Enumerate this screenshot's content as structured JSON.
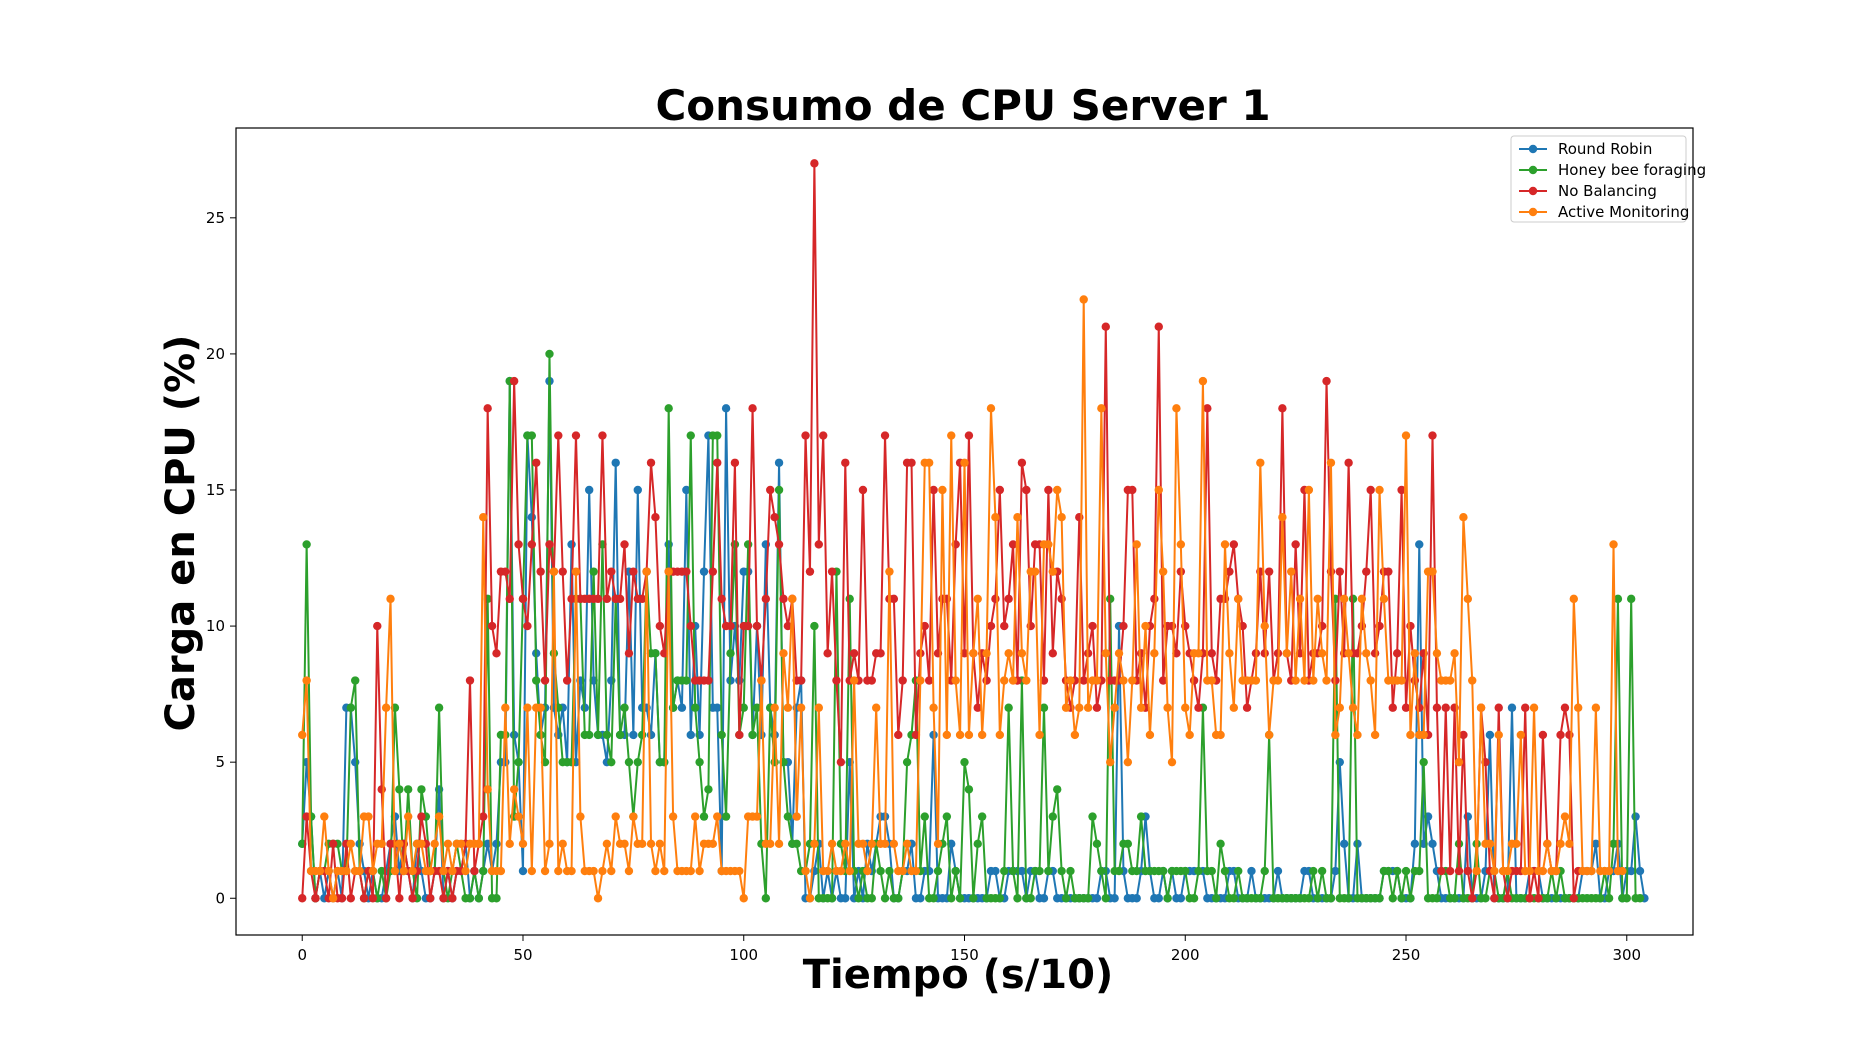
{
  "chart_data": {
    "type": "line",
    "title": "Consumo de CPU Server 1",
    "xlabel": "Tiempo (s/10)",
    "ylabel": "Carga en CPU (%)",
    "xlim": [
      -15,
      315
    ],
    "ylim": [
      -1.35,
      28.3
    ],
    "xticks": [
      0,
      50,
      100,
      150,
      200,
      250,
      300
    ],
    "yticks": [
      0,
      5,
      10,
      15,
      20,
      25
    ],
    "grid": false,
    "legend_position": "top-right",
    "marker": "circle",
    "series": [
      {
        "name": "Round Robin",
        "color": "#1f77b4",
        "values": [
          2,
          5,
          3,
          0,
          1,
          0,
          1,
          0,
          1,
          0,
          7,
          7,
          5,
          2,
          1,
          0,
          1,
          0,
          0,
          1,
          2,
          3,
          1,
          2,
          1,
          0,
          2,
          1,
          0,
          0,
          1,
          4,
          0,
          1,
          0,
          1,
          1,
          2,
          0,
          1,
          0,
          1,
          2,
          1,
          2,
          5,
          5,
          19,
          6,
          5,
          1,
          17,
          14,
          9,
          6,
          7,
          19,
          7,
          6,
          7,
          5,
          13,
          5,
          8,
          7,
          15,
          8,
          6,
          6,
          5,
          8,
          16,
          6,
          6,
          12,
          6,
          15,
          7,
          7,
          6,
          9,
          5,
          5,
          13,
          7,
          8,
          7,
          15,
          6,
          10,
          6,
          12,
          17,
          7,
          7,
          1,
          18,
          8,
          10,
          8,
          12,
          12,
          6,
          10,
          6,
          13,
          7,
          6,
          16,
          5,
          5,
          2,
          7,
          8,
          0,
          0,
          1,
          2,
          0,
          1,
          0,
          1,
          0,
          0,
          5,
          0,
          1,
          0,
          2,
          1,
          2,
          3,
          3,
          2,
          0,
          0,
          1,
          1,
          2,
          0,
          0,
          1,
          1,
          6,
          0,
          0,
          0,
          2,
          1,
          0,
          0,
          0,
          0,
          0,
          0,
          0,
          1,
          1,
          0,
          0,
          1,
          1,
          1,
          1,
          0,
          1,
          1,
          0,
          0,
          1,
          1,
          0,
          0,
          0,
          0,
          0,
          0,
          0,
          0,
          0,
          0,
          1,
          1,
          0,
          0,
          10,
          1,
          0,
          0,
          0,
          1,
          3,
          1,
          0,
          0,
          1,
          0,
          1,
          0,
          0,
          1,
          1,
          1,
          1,
          1,
          0,
          0,
          0,
          0,
          0,
          1,
          1,
          0,
          0,
          0,
          1,
          0,
          0,
          0,
          0,
          0,
          1,
          0,
          0,
          0,
          0,
          0,
          1,
          1,
          0,
          0,
          0,
          0,
          0,
          1,
          5,
          2,
          0,
          0,
          2,
          0,
          0,
          0,
          0,
          0,
          1,
          1,
          1,
          1,
          0,
          0,
          0,
          2,
          13,
          2,
          3,
          2,
          1,
          0,
          0,
          0,
          0,
          0,
          0,
          3,
          0,
          0,
          0,
          1,
          6,
          0,
          0,
          0,
          0,
          7,
          0,
          0,
          0,
          1,
          1,
          1,
          0,
          0,
          0,
          0,
          0,
          0,
          0,
          0,
          0,
          1,
          1,
          1,
          2,
          0,
          0,
          1,
          1,
          2,
          0,
          1,
          1,
          3,
          1,
          0
        ]
      },
      {
        "name": "Honey bee foraging",
        "color": "#2ca02c",
        "values": [
          2,
          13,
          3,
          0,
          1,
          1,
          2,
          2,
          2,
          1,
          1,
          7,
          8,
          1,
          0,
          1,
          1,
          0,
          1,
          0,
          1,
          7,
          4,
          1,
          4,
          1,
          0,
          4,
          3,
          1,
          1,
          7,
          1,
          0,
          1,
          2,
          1,
          0,
          0,
          1,
          0,
          1,
          11,
          0,
          0,
          6,
          6,
          19,
          3,
          5,
          11,
          17,
          17,
          8,
          6,
          5,
          20,
          9,
          7,
          5,
          5,
          5,
          11,
          11,
          6,
          6,
          12,
          6,
          13,
          6,
          5,
          11,
          6,
          7,
          5,
          3,
          5,
          6,
          12,
          9,
          9,
          5,
          5,
          18,
          7,
          8,
          8,
          8,
          17,
          7,
          5,
          3,
          4,
          17,
          17,
          6,
          3,
          9,
          13,
          6,
          7,
          13,
          6,
          7,
          2,
          0,
          7,
          5,
          15,
          5,
          3,
          2,
          2,
          1,
          1,
          2,
          10,
          0,
          0,
          0,
          0,
          12,
          2,
          1,
          11,
          1,
          0,
          1,
          0,
          0,
          2,
          1,
          0,
          1,
          0,
          0,
          1,
          5,
          6,
          8,
          1,
          3,
          0,
          0,
          1,
          2,
          3,
          0,
          1,
          0,
          5,
          4,
          0,
          2,
          3,
          0,
          0,
          0,
          0,
          1,
          7,
          1,
          0,
          8,
          0,
          0,
          1,
          1,
          7,
          1,
          3,
          4,
          1,
          0,
          1,
          0,
          0,
          0,
          0,
          3,
          2,
          1,
          0,
          11,
          1,
          1,
          2,
          2,
          1,
          1,
          3,
          1,
          1,
          1,
          1,
          1,
          0,
          1,
          1,
          1,
          1,
          0,
          0,
          1,
          7,
          1,
          1,
          0,
          2,
          1,
          0,
          0,
          1,
          0,
          0,
          0,
          0,
          0,
          1,
          6,
          0,
          0,
          0,
          0,
          0,
          0,
          0,
          0,
          0,
          1,
          0,
          1,
          0,
          0,
          11,
          0,
          0,
          0,
          11,
          0,
          0,
          0,
          0,
          0,
          0,
          1,
          1,
          0,
          1,
          0,
          1,
          0,
          1,
          1,
          5,
          0,
          0,
          0,
          1,
          1,
          0,
          0,
          2,
          0,
          0,
          0,
          2,
          0,
          0,
          1,
          1,
          0,
          0,
          1,
          0,
          0,
          0,
          0,
          0,
          0,
          0,
          0,
          0,
          1,
          0,
          1,
          0,
          0,
          0,
          0,
          0,
          0,
          0,
          0,
          0,
          1,
          0,
          2,
          11,
          0,
          0,
          11,
          0,
          0
        ]
      },
      {
        "name": "No Balancing",
        "color": "#d62728",
        "values": [
          0,
          3,
          1,
          0,
          1,
          1,
          0,
          2,
          0,
          0,
          2,
          0,
          1,
          1,
          0,
          1,
          0,
          10,
          4,
          0,
          2,
          2,
          0,
          2,
          1,
          0,
          1,
          3,
          2,
          0,
          1,
          1,
          0,
          1,
          0,
          1,
          1,
          2,
          8,
          1,
          2,
          3,
          18,
          10,
          9,
          12,
          12,
          11,
          19,
          13,
          11,
          10,
          13,
          16,
          12,
          8,
          13,
          12,
          17,
          12,
          8,
          11,
          17,
          11,
          11,
          11,
          11,
          11,
          17,
          11,
          12,
          11,
          11,
          13,
          9,
          12,
          11,
          11,
          12,
          16,
          14,
          10,
          9,
          12,
          12,
          12,
          12,
          12,
          10,
          8,
          8,
          8,
          8,
          12,
          16,
          11,
          10,
          10,
          16,
          6,
          10,
          10,
          18,
          10,
          8,
          11,
          15,
          14,
          13,
          11,
          10,
          11,
          8,
          8,
          17,
          12,
          27,
          13,
          17,
          9,
          12,
          8,
          5,
          16,
          8,
          9,
          8,
          15,
          8,
          8,
          9,
          9,
          17,
          11,
          11,
          6,
          8,
          16,
          16,
          6,
          9,
          10,
          8,
          15,
          9,
          11,
          11,
          8,
          13,
          16,
          9,
          17,
          9,
          7,
          9,
          8,
          10,
          11,
          15,
          10,
          11,
          13,
          8,
          16,
          15,
          10,
          13,
          13,
          8,
          15,
          9,
          12,
          11,
          8,
          7,
          8,
          14,
          8,
          9,
          10,
          7,
          8,
          21,
          8,
          8,
          8,
          10,
          15,
          15,
          8,
          9,
          7,
          10,
          11,
          21,
          8,
          10,
          10,
          9,
          12,
          10,
          9,
          8,
          7,
          9,
          18,
          9,
          8,
          11,
          11,
          12,
          13,
          11,
          10,
          7,
          8,
          9,
          12,
          9,
          12,
          8,
          9,
          18,
          9,
          8,
          13,
          9,
          15,
          8,
          9,
          9,
          10,
          19,
          12,
          8,
          12,
          9,
          16,
          9,
          9,
          10,
          12,
          15,
          9,
          10,
          12,
          12,
          7,
          9,
          15,
          7,
          10,
          8,
          7,
          9,
          6,
          17,
          7,
          1,
          7,
          1,
          7,
          1,
          6,
          1,
          0,
          1,
          7,
          5,
          1,
          0,
          7,
          1,
          0,
          1,
          1,
          1,
          7,
          0,
          1,
          0,
          6,
          2,
          1,
          1,
          6,
          7,
          6,
          0,
          1,
          1
        ]
      },
      {
        "name": "Active Monitoring",
        "color": "#ff7f0e",
        "values": [
          6,
          8,
          1,
          1,
          1,
          3,
          1,
          0,
          1,
          1,
          1,
          2,
          1,
          1,
          3,
          3,
          1,
          2,
          2,
          7,
          11,
          1,
          2,
          1,
          3,
          1,
          2,
          2,
          1,
          1,
          2,
          3,
          1,
          2,
          1,
          2,
          2,
          1,
          2,
          2,
          2,
          14,
          4,
          1,
          1,
          1,
          7,
          2,
          4,
          3,
          2,
          7,
          1,
          7,
          7,
          1,
          2,
          12,
          1,
          2,
          1,
          1,
          12,
          3,
          1,
          1,
          1,
          0,
          1,
          2,
          1,
          3,
          2,
          2,
          1,
          3,
          2,
          2,
          12,
          2,
          1,
          2,
          1,
          12,
          3,
          1,
          1,
          1,
          1,
          3,
          1,
          2,
          2,
          2,
          3,
          1,
          1,
          1,
          1,
          1,
          0,
          3,
          3,
          3,
          8,
          2,
          2,
          7,
          2,
          9,
          7,
          11,
          3,
          7,
          1,
          0,
          2,
          7,
          1,
          1,
          2,
          1,
          1,
          2,
          1,
          8,
          2,
          2,
          1,
          2,
          7,
          2,
          2,
          12,
          2,
          1,
          1,
          2,
          1,
          1,
          8,
          16,
          16,
          7,
          2,
          15,
          6,
          17,
          8,
          6,
          16,
          6,
          9,
          11,
          6,
          9,
          18,
          14,
          6,
          8,
          9,
          8,
          14,
          9,
          8,
          12,
          12,
          6,
          13,
          13,
          12,
          15,
          14,
          7,
          8,
          6,
          7,
          22,
          7,
          8,
          8,
          18,
          9,
          5,
          7,
          9,
          8,
          5,
          8,
          13,
          7,
          10,
          6,
          9,
          15,
          12,
          7,
          5,
          18,
          13,
          7,
          6,
          9,
          9,
          19,
          8,
          8,
          6,
          6,
          13,
          9,
          7,
          11,
          8,
          8,
          8,
          8,
          16,
          10,
          6,
          8,
          8,
          14,
          9,
          12,
          8,
          11,
          8,
          15,
          8,
          11,
          9,
          8,
          16,
          6,
          7,
          11,
          9,
          7,
          6,
          11,
          9,
          8,
          6,
          15,
          11,
          8,
          8,
          8,
          8,
          17,
          6,
          9,
          6,
          6,
          12,
          12,
          9,
          8,
          8,
          8,
          9,
          5,
          14,
          11,
          8,
          1,
          7,
          2,
          2,
          1,
          6,
          1,
          1,
          2,
          2,
          6,
          1,
          1,
          7,
          1,
          1,
          2,
          1,
          1,
          2,
          3,
          2,
          11,
          7,
          1,
          1,
          1,
          7,
          1,
          1,
          1,
          13,
          1,
          1
        ]
      }
    ]
  }
}
